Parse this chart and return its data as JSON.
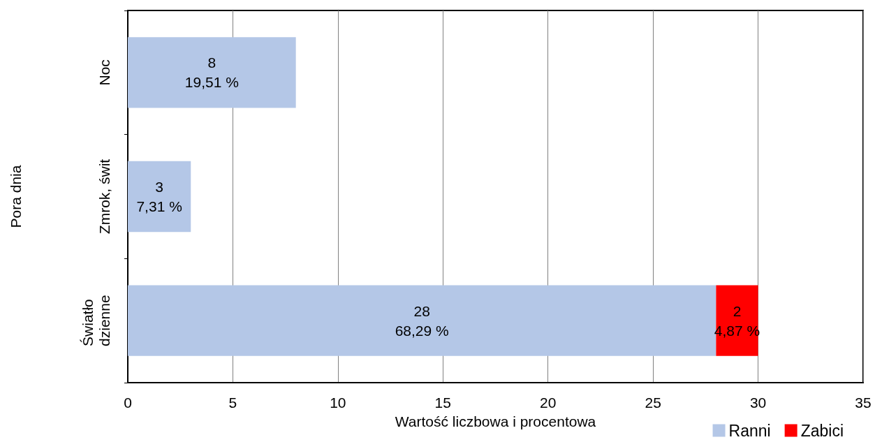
{
  "chart_data": {
    "type": "bar",
    "orientation": "horizontal",
    "stacked": true,
    "categories": [
      "Noc",
      "Zmrok, świt",
      "Światło dzienne"
    ],
    "series": [
      {
        "name": "Ranni",
        "color": "#b4c7e7",
        "values": [
          8,
          3,
          28
        ],
        "value_labels": [
          "8\n19,51 %",
          "3\n7,31 %",
          "28\n68,29 %"
        ]
      },
      {
        "name": "Zabici",
        "color": "#ff0000",
        "values": [
          null,
          null,
          2
        ],
        "value_labels": [
          null,
          null,
          "2\n4,87 %"
        ]
      }
    ],
    "xlabel": "Wartość liczbowa i procentowa",
    "ylabel": "Pora dnia",
    "xlim": [
      0,
      35
    ],
    "xticks": [
      0,
      5,
      10,
      15,
      20,
      25,
      30,
      35
    ],
    "grid": "x",
    "legend": "bottom right"
  }
}
